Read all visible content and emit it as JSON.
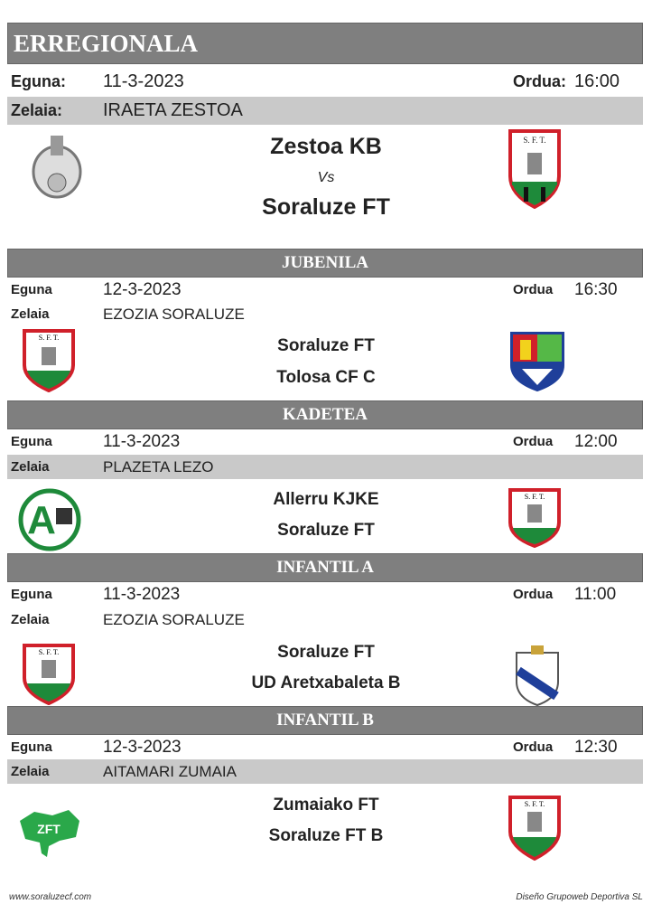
{
  "matches": [
    {
      "category": "ERREGIONALA",
      "date_label": "Eguna:",
      "date": "11-3-2023",
      "time_label": "Ordua:",
      "time": "16:00",
      "field_label": "Zelaia:",
      "field": "IRAETA ZESTOA",
      "home": "Zestoa KB",
      "vs": "Vs",
      "away": "Soraluze FT",
      "home_logo": "zestoa-crest",
      "away_logo": "soraluze-crest"
    },
    {
      "category": "JUBENILA",
      "date_label": "Eguna",
      "date": "12-3-2023",
      "time_label": "Ordua",
      "time": "16:30",
      "field_label": "Zelaia",
      "field": "EZOZIA SORALUZE",
      "home": "Soraluze FT",
      "away": "Tolosa CF C",
      "home_logo": "soraluze-crest",
      "away_logo": "tolosa-crest"
    },
    {
      "category": "KADETEA",
      "date_label": "Eguna",
      "date": "11-3-2023",
      "time_label": "Ordua",
      "time": "12:00",
      "field_label": "Zelaia",
      "field": "PLAZETA LEZO",
      "home": "Allerru KJKE",
      "away": "Soraluze FT",
      "home_logo": "allerru-crest",
      "away_logo": "soraluze-crest"
    },
    {
      "category": "INFANTIL A",
      "date_label": "Eguna",
      "date": "11-3-2023",
      "time_label": "Ordua",
      "time": "11:00",
      "field_label": "Zelaia",
      "field": "EZOZIA SORALUZE",
      "home": "Soraluze FT",
      "away": "UD Aretxabaleta B",
      "home_logo": "soraluze-crest",
      "away_logo": "aretxabaleta-crest"
    },
    {
      "category": "INFANTIL B",
      "date_label": "Eguna",
      "date": "12-3-2023",
      "time_label": "Ordua",
      "time": "12:30",
      "field_label": "Zelaia",
      "field": "AITAMARI ZUMAIA",
      "home": "Zumaiako FT",
      "away": "Soraluze FT B",
      "home_logo": "zumaia-crest",
      "away_logo": "soraluze-crest"
    }
  ],
  "footer": {
    "website": "www.soraluzecf.com",
    "credit": "Diseño Grupoweb Deportiva SL"
  },
  "colors": {
    "header": "#7f7f7f",
    "stripe": "#c9c9c9",
    "soraluze_red": "#d0202a",
    "soraluze_green": "#1e8a3a"
  }
}
